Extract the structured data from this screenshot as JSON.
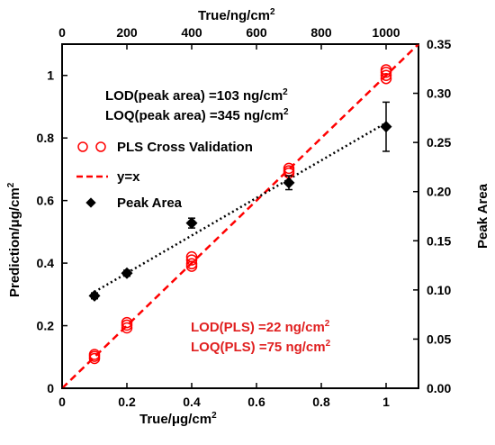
{
  "chart_data": {
    "type": "scatter",
    "x_bottom": {
      "label_prefix": "True/",
      "label_mu": "μ",
      "label_unit": "g/cm",
      "label_sup": "2",
      "range": [
        0,
        1.1
      ],
      "ticks": [
        "0",
        "0.2",
        "0.4",
        "0.6",
        "0.8",
        "1"
      ],
      "tick_values": [
        0,
        0.2,
        0.4,
        0.6,
        0.8,
        1.0
      ]
    },
    "x_top": {
      "label_main": "True/ng/cm",
      "label_sup": "2",
      "range": [
        0,
        1100
      ],
      "ticks": [
        "0",
        "200",
        "400",
        "600",
        "800",
        "1000"
      ],
      "tick_values": [
        0,
        200,
        400,
        600,
        800,
        1000
      ]
    },
    "y_left": {
      "label_prefix": "Prediction/",
      "label_mu": "μ",
      "label_unit": "g/cm",
      "label_sup": "2",
      "range": [
        0,
        1.1
      ],
      "ticks": [
        "0",
        "0.2",
        "0.4",
        "0.6",
        "0.8",
        "1"
      ],
      "tick_values": [
        0,
        0.2,
        0.4,
        0.6,
        0.8,
        1.0
      ]
    },
    "y_right": {
      "label": "Peak Area",
      "range": [
        0,
        0.35
      ],
      "ticks": [
        "0.00",
        "0.05",
        "0.10",
        "0.15",
        "0.20",
        "0.25",
        "0.30",
        "0.35"
      ],
      "tick_values": [
        0,
        0.05,
        0.1,
        0.15,
        0.2,
        0.25,
        0.3,
        0.35
      ]
    },
    "series": [
      {
        "name": "PLS Cross Validation",
        "marker": "open-circle",
        "color": "#ff0000",
        "axis": "left",
        "points": [
          [
            0.1,
            0.095
          ],
          [
            0.1,
            0.102
          ],
          [
            0.1,
            0.108
          ],
          [
            0.2,
            0.193
          ],
          [
            0.2,
            0.202
          ],
          [
            0.2,
            0.21
          ],
          [
            0.4,
            0.39
          ],
          [
            0.4,
            0.398
          ],
          [
            0.4,
            0.41
          ],
          [
            0.4,
            0.42
          ],
          [
            0.7,
            0.688
          ],
          [
            0.7,
            0.695
          ],
          [
            0.7,
            0.703
          ],
          [
            1.0,
            0.99
          ],
          [
            1.0,
            1.0
          ],
          [
            1.0,
            1.01
          ],
          [
            1.0,
            1.018
          ]
        ]
      },
      {
        "name": "y=x",
        "style": "dashed-line",
        "color": "#ff0000",
        "axis": "left",
        "line": [
          [
            0,
            0
          ],
          [
            1.1,
            1.1
          ]
        ]
      },
      {
        "name": "Peak Area",
        "marker": "filled-diamond",
        "color": "#000000",
        "axis": "right",
        "points": [
          {
            "x": 0.1,
            "y": 0.094,
            "err": 0.003
          },
          {
            "x": 0.2,
            "y": 0.117,
            "err": 0.003
          },
          {
            "x": 0.4,
            "y": 0.168,
            "err": 0.005
          },
          {
            "x": 0.7,
            "y": 0.209,
            "err": 0.007
          },
          {
            "x": 1.0,
            "y": 0.266,
            "err": 0.025
          }
        ]
      }
    ],
    "fit_line": {
      "style": "dotted",
      "color": "#000000",
      "axis": "right",
      "line": [
        [
          0.1,
          0.098
        ],
        [
          1.0,
          0.27
        ]
      ]
    },
    "annotations": {
      "lod_peak": "LOD(peak area) =103 ng/cm",
      "loq_peak": "LOQ(peak area) =345 ng/cm",
      "lod_pls": "LOD(PLS) =22 ng/cm",
      "loq_pls": "LOQ(PLS) =75 ng/cm",
      "sup": "2",
      "peak_color": "#000000",
      "pls_color": "#e02020"
    },
    "legend": {
      "placement": "top-left",
      "items": [
        "PLS Cross Validation",
        "y=x",
        "Peak Area"
      ]
    },
    "grid": false
  }
}
